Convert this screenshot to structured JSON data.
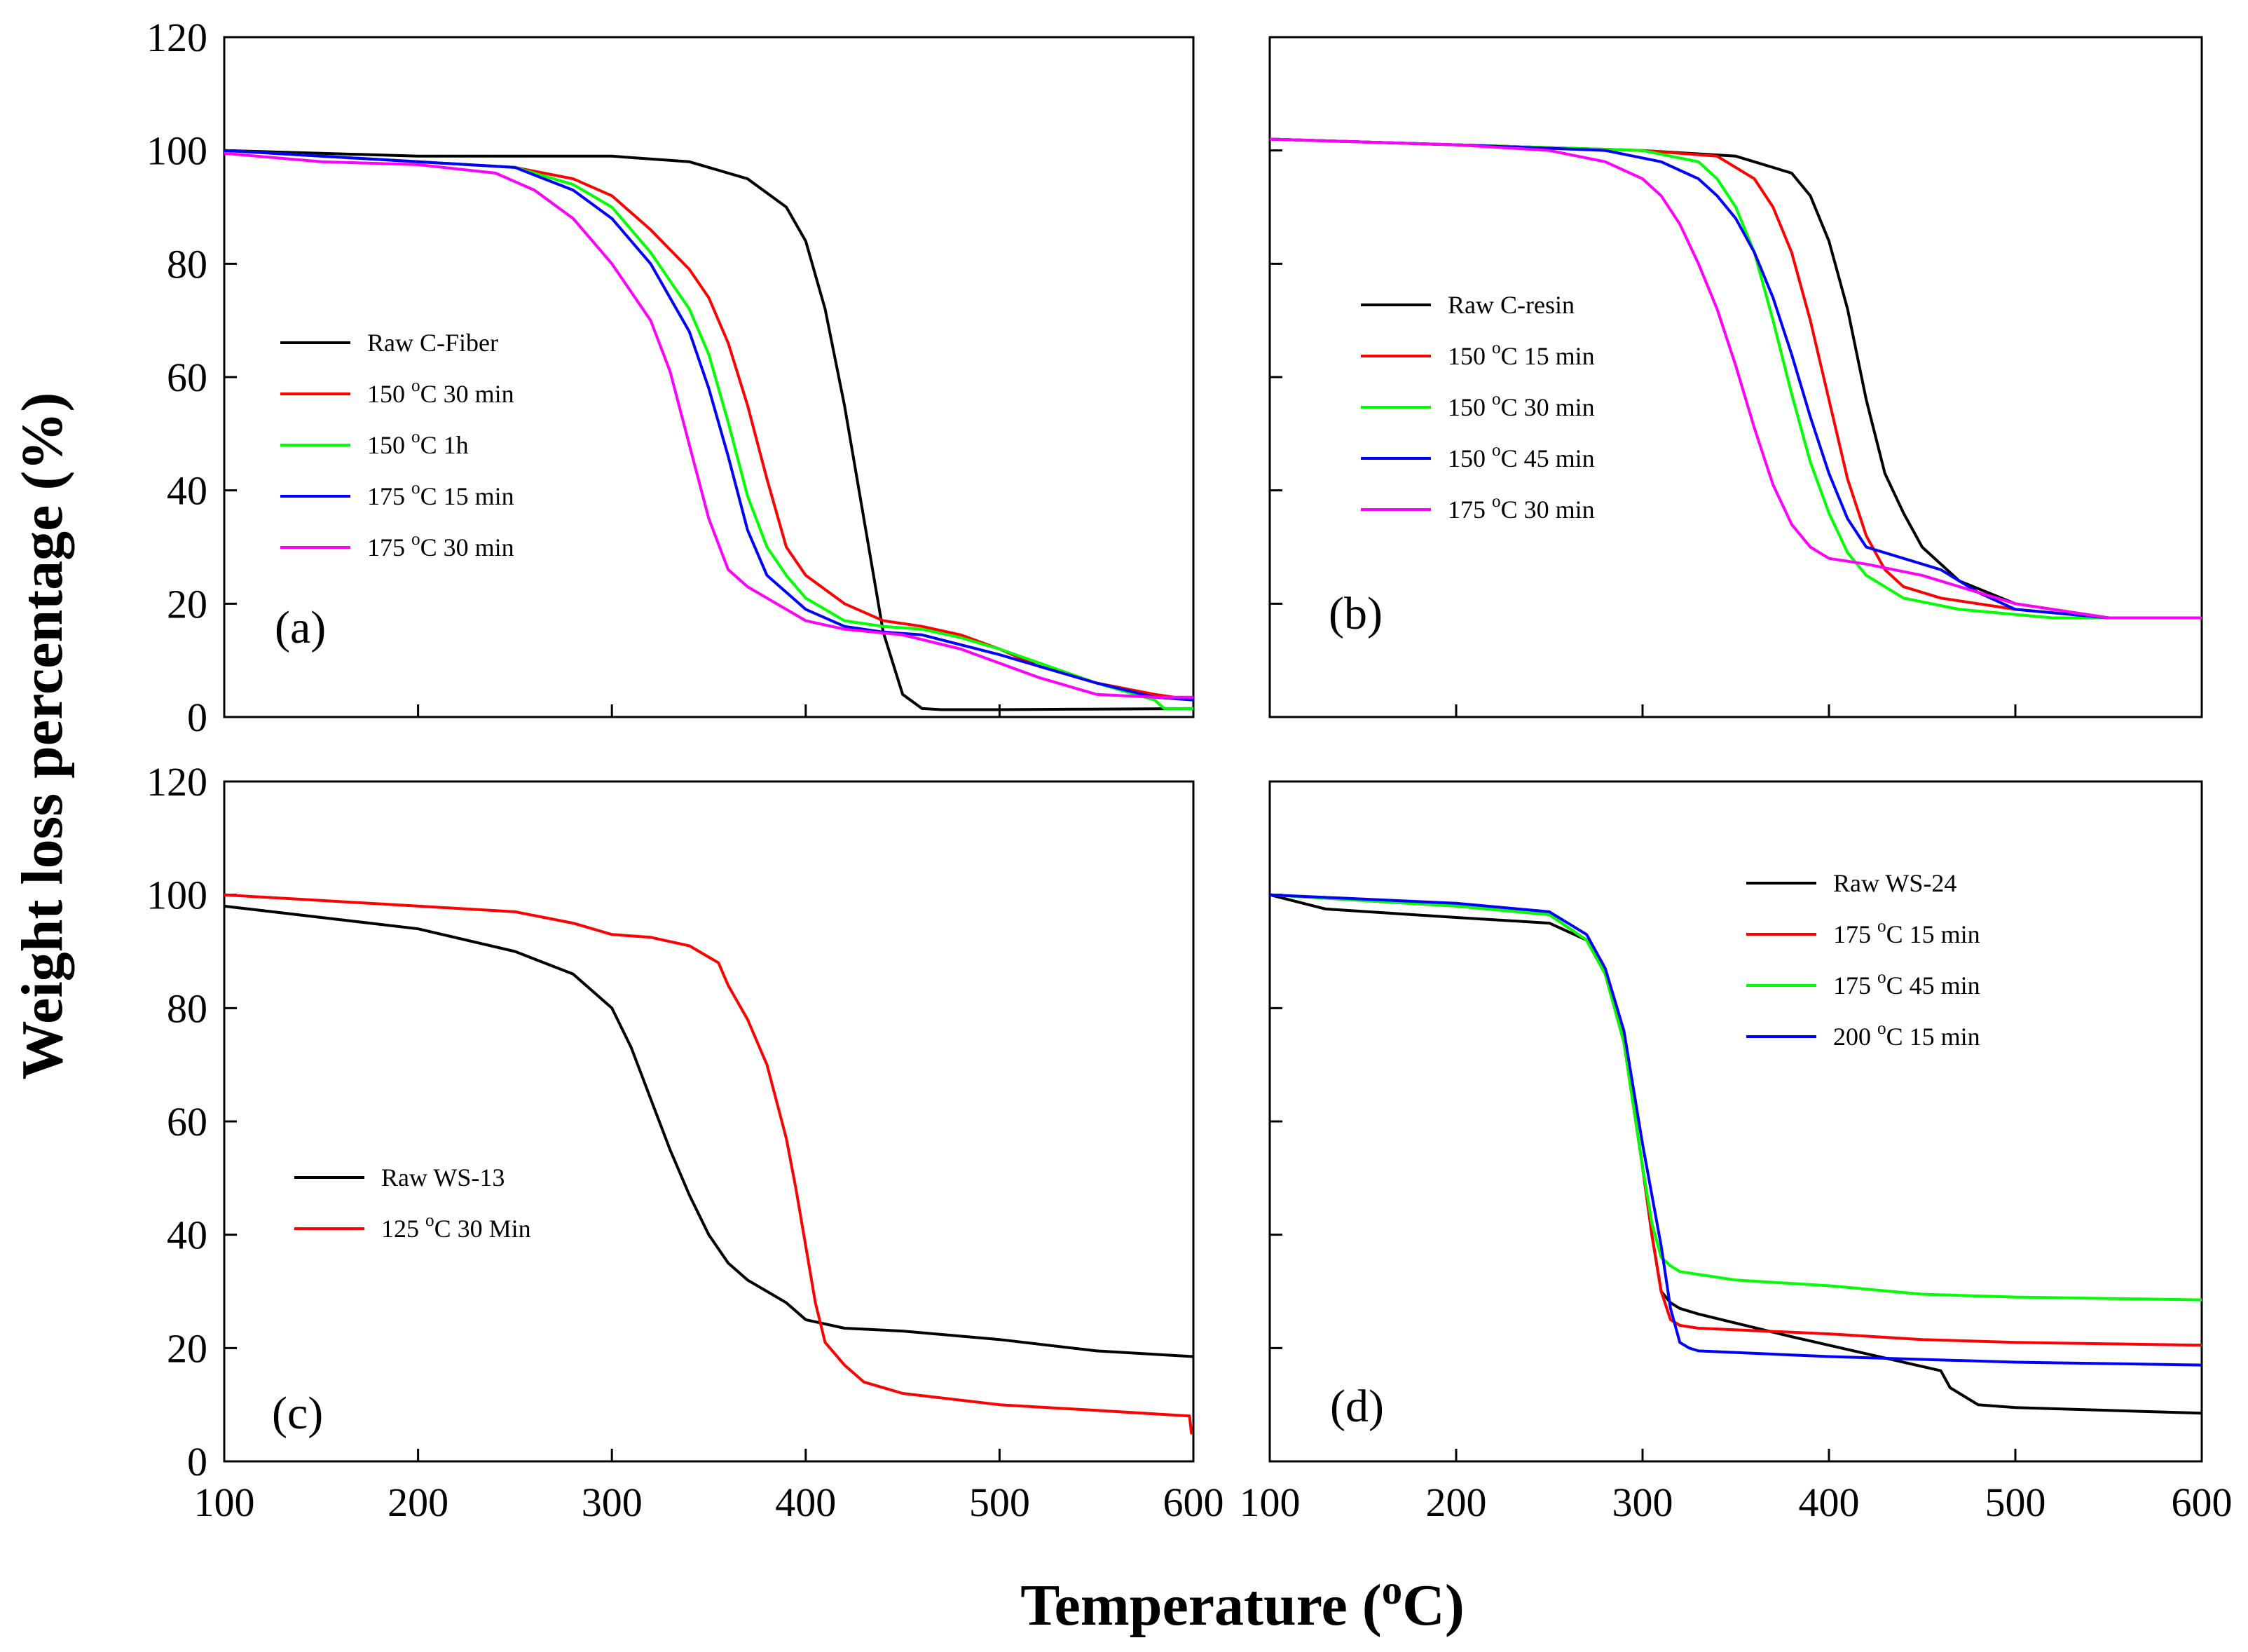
{
  "figure": {
    "ylabel": "Weight loss percentage (%)",
    "xlabel": {
      "main": "Temperature (",
      "sup": "o",
      "tail": "C)"
    }
  },
  "chart_data": [
    {
      "type": "line",
      "panel": "(a)",
      "xlim": [
        100,
        600
      ],
      "ylim": [
        0,
        120
      ],
      "yticks": [
        0,
        20,
        40,
        60,
        80,
        100,
        120
      ],
      "xticks": [
        100,
        200,
        300,
        400,
        500,
        600
      ],
      "show_ytick_labels": true,
      "show_xtick_labels": false,
      "legend_position": "middle-left",
      "series": [
        {
          "name": "Raw C-Fiber",
          "label": {
            "pre": "Raw C-Fiber"
          },
          "color": "#000000",
          "x": [
            100,
            150,
            200,
            250,
            300,
            340,
            370,
            390,
            400,
            410,
            420,
            430,
            440,
            450,
            460,
            470,
            500,
            550,
            600
          ],
          "y": [
            100,
            99.5,
            99,
            99,
            99,
            98,
            95,
            90,
            84,
            72,
            55,
            35,
            15,
            4,
            1.5,
            1.3,
            1.3,
            1.4,
            1.5
          ]
        },
        {
          "name": "150 °C 30 min",
          "label": {
            "pre": "150 ",
            "sup": "o",
            "post": "C 30 min"
          },
          "color": "#ff0000",
          "x": [
            100,
            200,
            250,
            280,
            300,
            320,
            340,
            350,
            360,
            370,
            380,
            390,
            400,
            420,
            440,
            460,
            480,
            500,
            520,
            550,
            580,
            600
          ],
          "y": [
            100,
            98,
            97,
            95,
            92,
            86,
            79,
            74,
            66,
            55,
            42,
            30,
            25,
            20,
            17,
            16,
            14.5,
            12,
            9,
            6,
            4,
            3
          ]
        },
        {
          "name": "150 °C 1h",
          "label": {
            "pre": "150 ",
            "sup": "o",
            "post": "C 1h"
          },
          "color": "#00ff00",
          "x": [
            100,
            200,
            250,
            280,
            300,
            320,
            340,
            350,
            360,
            370,
            380,
            390,
            400,
            420,
            440,
            460,
            480,
            500,
            550,
            580,
            585,
            600
          ],
          "y": [
            100,
            98,
            97,
            94,
            90,
            82,
            72,
            64,
            52,
            39,
            30,
            25,
            21,
            17,
            16,
            15.5,
            14,
            12,
            6,
            3,
            1.5,
            1.5
          ]
        },
        {
          "name": "175 °C 15 min",
          "label": {
            "pre": "175 ",
            "sup": "o",
            "post": "C 15 min"
          },
          "color": "#0000ff",
          "x": [
            100,
            200,
            250,
            280,
            300,
            320,
            340,
            350,
            360,
            370,
            380,
            400,
            420,
            440,
            460,
            500,
            550,
            580,
            600
          ],
          "y": [
            100,
            98,
            97,
            93,
            88,
            80,
            68,
            58,
            46,
            33,
            25,
            19,
            16,
            15,
            14.5,
            11,
            6,
            3.5,
            3
          ]
        },
        {
          "name": "175 °C 30 min",
          "label": {
            "pre": "175 ",
            "sup": "o",
            "post": "C 30 min"
          },
          "color": "#ff00ff",
          "x": [
            100,
            150,
            200,
            240,
            260,
            280,
            300,
            320,
            330,
            340,
            350,
            360,
            370,
            380,
            400,
            420,
            450,
            480,
            520,
            550,
            580,
            600
          ],
          "y": [
            99.5,
            98,
            97.5,
            96,
            93,
            88,
            80,
            70,
            61,
            48,
            35,
            26,
            23,
            21,
            17,
            15.5,
            14.5,
            12,
            7,
            4,
            3.5,
            3.5
          ]
        }
      ]
    },
    {
      "type": "line",
      "panel": "(b)",
      "xlim": [
        100,
        600
      ],
      "ylim": [
        0,
        120
      ],
      "yticks": [
        0,
        20,
        40,
        60,
        80,
        100,
        120
      ],
      "xticks": [
        100,
        200,
        300,
        400,
        500,
        600
      ],
      "show_ytick_labels": false,
      "show_xtick_labels": false,
      "legend_position": "middle-left",
      "series": [
        {
          "name": "Raw C-resin",
          "label": {
            "pre": "Raw C-resin"
          },
          "color": "#000000",
          "x": [
            100,
            200,
            300,
            350,
            380,
            390,
            400,
            410,
            420,
            430,
            440,
            450,
            470,
            500,
            550,
            600
          ],
          "y": [
            102,
            101,
            100,
            99,
            96,
            92,
            84,
            72,
            56,
            43,
            36,
            30,
            24,
            20,
            17.5,
            17.5
          ]
        },
        {
          "name": "150 °C 15 min",
          "label": {
            "pre": "150 ",
            "sup": "o",
            "post": "C 15 min"
          },
          "color": "#ff0000",
          "x": [
            100,
            200,
            300,
            340,
            360,
            370,
            380,
            390,
            400,
            410,
            420,
            430,
            440,
            460,
            500,
            550,
            600
          ],
          "y": [
            102,
            101,
            100,
            99,
            95,
            90,
            82,
            70,
            56,
            42,
            32,
            26,
            23,
            21,
            19,
            17.5,
            17.5
          ]
        },
        {
          "name": "150 °C 30 min",
          "label": {
            "pre": "150 ",
            "sup": "o",
            "post": "C 30 min"
          },
          "color": "#00ff00",
          "x": [
            100,
            200,
            300,
            330,
            340,
            350,
            360,
            370,
            380,
            390,
            400,
            410,
            420,
            440,
            470,
            520,
            600
          ],
          "y": [
            102,
            101,
            100,
            98,
            95,
            90,
            82,
            70,
            57,
            45,
            36,
            29,
            25,
            21,
            19,
            17.5,
            17.5
          ]
        },
        {
          "name": "150 °C 45 min",
          "label": {
            "pre": "150 ",
            "sup": "o",
            "post": "C 45 min"
          },
          "color": "#0000ff",
          "x": [
            100,
            200,
            280,
            310,
            330,
            340,
            350,
            360,
            370,
            380,
            390,
            400,
            410,
            420,
            440,
            460,
            480,
            500,
            550,
            600
          ],
          "y": [
            102,
            101,
            100,
            98,
            95,
            92,
            88,
            82,
            74,
            64,
            53,
            43,
            35,
            30,
            28,
            26,
            22,
            19,
            17.5,
            17.5
          ]
        },
        {
          "name": "175 °C 30 min",
          "label": {
            "pre": "175 ",
            "sup": "o",
            "post": "C 30 min"
          },
          "color": "#ff00ff",
          "x": [
            100,
            200,
            250,
            280,
            300,
            310,
            320,
            330,
            340,
            350,
            360,
            370,
            380,
            390,
            400,
            420,
            450,
            500,
            550,
            600
          ],
          "y": [
            102,
            101,
            100,
            98,
            95,
            92,
            87,
            80,
            72,
            62,
            51,
            41,
            34,
            30,
            28,
            27,
            25,
            20,
            17.5,
            17.5
          ]
        }
      ]
    },
    {
      "type": "line",
      "panel": "(c)",
      "xlim": [
        100,
        600
      ],
      "ylim": [
        0,
        120
      ],
      "yticks": [
        0,
        20,
        40,
        60,
        80,
        100,
        120
      ],
      "xticks": [
        100,
        200,
        300,
        400,
        500,
        600
      ],
      "show_ytick_labels": true,
      "show_xtick_labels": true,
      "legend_position": "middle-left",
      "series": [
        {
          "name": "Raw WS-13",
          "label": {
            "pre": "Raw WS-13"
          },
          "color": "#000000",
          "x": [
            100,
            150,
            200,
            250,
            280,
            300,
            310,
            320,
            330,
            340,
            350,
            360,
            370,
            380,
            390,
            400,
            420,
            450,
            500,
            550,
            600
          ],
          "y": [
            98,
            96,
            94,
            90,
            86,
            80,
            73,
            64,
            55,
            47,
            40,
            35,
            32,
            30,
            28,
            25,
            23.5,
            23,
            21.5,
            19.5,
            18.5
          ]
        },
        {
          "name": "125 °C 30 Min",
          "label": {
            "pre": "125 ",
            "sup": "o",
            "post": "C 30 Min"
          },
          "color": "#ff0000",
          "x": [
            100,
            150,
            200,
            250,
            280,
            300,
            320,
            340,
            350,
            355,
            360,
            370,
            380,
            390,
            395,
            400,
            405,
            410,
            420,
            430,
            450,
            500,
            550,
            598,
            599
          ],
          "y": [
            100,
            99,
            98,
            97,
            95,
            93,
            92.5,
            91,
            89,
            88,
            84,
            78,
            70,
            57,
            48,
            38,
            28,
            21,
            17,
            14,
            12,
            10,
            9,
            8,
            5
          ]
        }
      ]
    },
    {
      "type": "line",
      "panel": "(d)",
      "xlim": [
        100,
        600
      ],
      "ylim": [
        0,
        120
      ],
      "yticks": [
        0,
        20,
        40,
        60,
        80,
        100,
        120
      ],
      "xticks": [
        100,
        200,
        300,
        400,
        500,
        600
      ],
      "show_ytick_labels": false,
      "show_xtick_labels": true,
      "legend_position": "top-right",
      "series": [
        {
          "name": "Raw WS-24",
          "label": {
            "pre": "Raw WS-24"
          },
          "color": "#000000",
          "x": [
            100,
            130,
            200,
            250,
            270,
            280,
            290,
            300,
            305,
            310,
            315,
            320,
            330,
            380,
            420,
            460,
            465,
            470,
            480,
            500,
            550,
            600
          ],
          "y": [
            100,
            97.5,
            96,
            95,
            92,
            86,
            74,
            52,
            40,
            30,
            28,
            27,
            26,
            22,
            19,
            16,
            13,
            12,
            10,
            9.5,
            9,
            8.5
          ]
        },
        {
          "name": "175 °C 15 min",
          "label": {
            "pre": "175 ",
            "sup": "o",
            "post": "C 15 min"
          },
          "color": "#ff0000",
          "x": [
            100,
            200,
            250,
            270,
            280,
            290,
            300,
            305,
            310,
            315,
            320,
            330,
            400,
            450,
            500,
            600
          ],
          "y": [
            100,
            98,
            96.5,
            92,
            86,
            74,
            52,
            40,
            30,
            25,
            24,
            23.5,
            22.5,
            21.5,
            21,
            20.5
          ]
        },
        {
          "name": "175 °C 45 min",
          "label": {
            "pre": "175 ",
            "sup": "o",
            "post": "C 45 min"
          },
          "color": "#00ff00",
          "x": [
            100,
            200,
            250,
            270,
            280,
            290,
            300,
            305,
            310,
            315,
            320,
            350,
            400,
            450,
            500,
            600
          ],
          "y": [
            100,
            98,
            96.5,
            92,
            86,
            74,
            52,
            42,
            36,
            34.5,
            33.5,
            32,
            31,
            29.5,
            29,
            28.5
          ]
        },
        {
          "name": "200 °C 15 min",
          "label": {
            "pre": "200 ",
            "sup": "o",
            "post": "C 15 min"
          },
          "color": "#0000ff",
          "x": [
            100,
            200,
            250,
            270,
            280,
            290,
            300,
            310,
            315,
            320,
            325,
            330,
            400,
            500,
            600
          ],
          "y": [
            100,
            98.5,
            97,
            93,
            87,
            76,
            56,
            38,
            27,
            21,
            20,
            19.5,
            18.5,
            17.5,
            17
          ]
        }
      ]
    }
  ]
}
